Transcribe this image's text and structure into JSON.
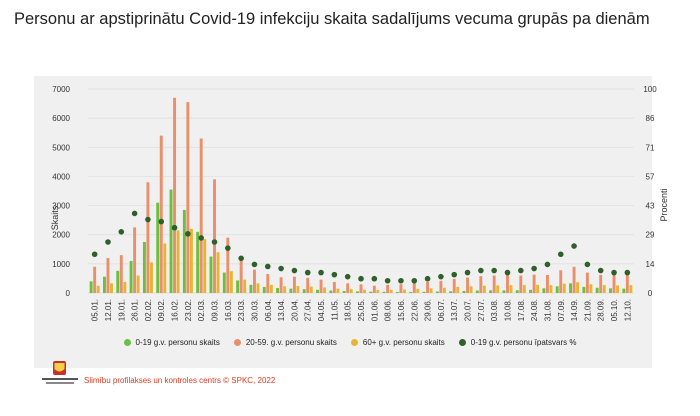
{
  "title": "Personu ar apstiprinātu Covid-19 infekciju skaita sadalījums vecuma grupās pa dienām",
  "source": "Slimību profilakses un kontroles centrs © SPKC, 2022",
  "logo_text": "Slimību profilakses un kontroles centrs",
  "colors": {
    "panel": "#f0f0f0",
    "age_0_19": "#6dbf3f",
    "age_20_59": "#ea8f6c",
    "age_60_plus": "#e8b52e",
    "share_0_19": "#2f5f2a",
    "source_text": "#e03a1e"
  },
  "chart_data": {
    "type": "bar",
    "title": "Personu ar apstiprinātu Covid-19 infekciju skaita sadalījums vecuma grupās pa dienām",
    "ylabel": "Skaits",
    "y2label": "Procenti",
    "ylim": [
      0,
      7000
    ],
    "y2lim": [
      0,
      100
    ],
    "yticks": [
      "0",
      "1000",
      "2000",
      "3000",
      "4000",
      "5000",
      "6000",
      "7000"
    ],
    "y2ticks": [
      "0",
      "14",
      "29",
      "43",
      "57",
      "71",
      "86",
      "100"
    ],
    "grid": true,
    "legend_position": "bottom",
    "x": [
      "05.01.",
      "12.01.",
      "19.01.",
      "26.01.",
      "02.02.",
      "09.02.",
      "16.02.",
      "23.02.",
      "02.03.",
      "09.03.",
      "16.03.",
      "23.03.",
      "30.03.",
      "06.04.",
      "13.04.",
      "20.04.",
      "27.04.",
      "04.05.",
      "11.05.",
      "18.05.",
      "25.05.",
      "01.06.",
      "08.06.",
      "15.06.",
      "22.06.",
      "29.06.",
      "06.07.",
      "13.07.",
      "20.07.",
      "27.07.",
      "03.08.",
      "10.08.",
      "17.08.",
      "24.08.",
      "31.08.",
      "07.09.",
      "14.09.",
      "21.09.",
      "28.09.",
      "05.10.",
      "12.10."
    ],
    "series": [
      {
        "name": "0-19 g.v. personu skaits",
        "type": "bar",
        "values": [
          400,
          560,
          760,
          1100,
          1750,
          3100,
          3550,
          2850,
          2100,
          1250,
          700,
          430,
          280,
          210,
          170,
          150,
          130,
          110,
          85,
          70,
          55,
          45,
          40,
          35,
          35,
          40,
          50,
          60,
          70,
          85,
          90,
          90,
          95,
          110,
          160,
          230,
          330,
          210,
          180,
          160,
          150
        ]
      },
      {
        "name": "20-59. g.v. personu skaits",
        "type": "bar",
        "values": [
          900,
          1200,
          1300,
          2250,
          3800,
          5400,
          6700,
          6550,
          5300,
          3900,
          1900,
          1150,
          800,
          650,
          540,
          560,
          520,
          460,
          380,
          330,
          300,
          250,
          280,
          300,
          340,
          380,
          420,
          480,
          530,
          580,
          600,
          620,
          600,
          630,
          620,
          780,
          900,
          700,
          620,
          620,
          650
        ]
      },
      {
        "name": "60+ g.v. personu skaits",
        "type": "bar",
        "values": [
          250,
          330,
          380,
          600,
          1050,
          1700,
          2150,
          2200,
          1850,
          1400,
          750,
          460,
          330,
          280,
          230,
          240,
          220,
          190,
          150,
          130,
          110,
          100,
          110,
          120,
          140,
          160,
          180,
          210,
          230,
          250,
          260,
          270,
          270,
          280,
          270,
          320,
          370,
          300,
          270,
          260,
          270
        ]
      },
      {
        "name": "0-19 g.v. personu īpatsvars %",
        "type": "scatter",
        "axis": "right",
        "values": [
          19,
          25,
          30,
          39,
          36,
          35,
          32,
          29,
          27,
          25,
          22,
          17,
          14,
          13,
          12,
          11,
          10,
          10,
          9,
          8,
          7,
          7,
          6,
          6,
          6,
          7,
          8,
          9,
          10,
          11,
          11,
          10,
          11,
          12,
          14,
          19,
          23,
          14,
          11,
          10,
          10
        ]
      }
    ]
  }
}
